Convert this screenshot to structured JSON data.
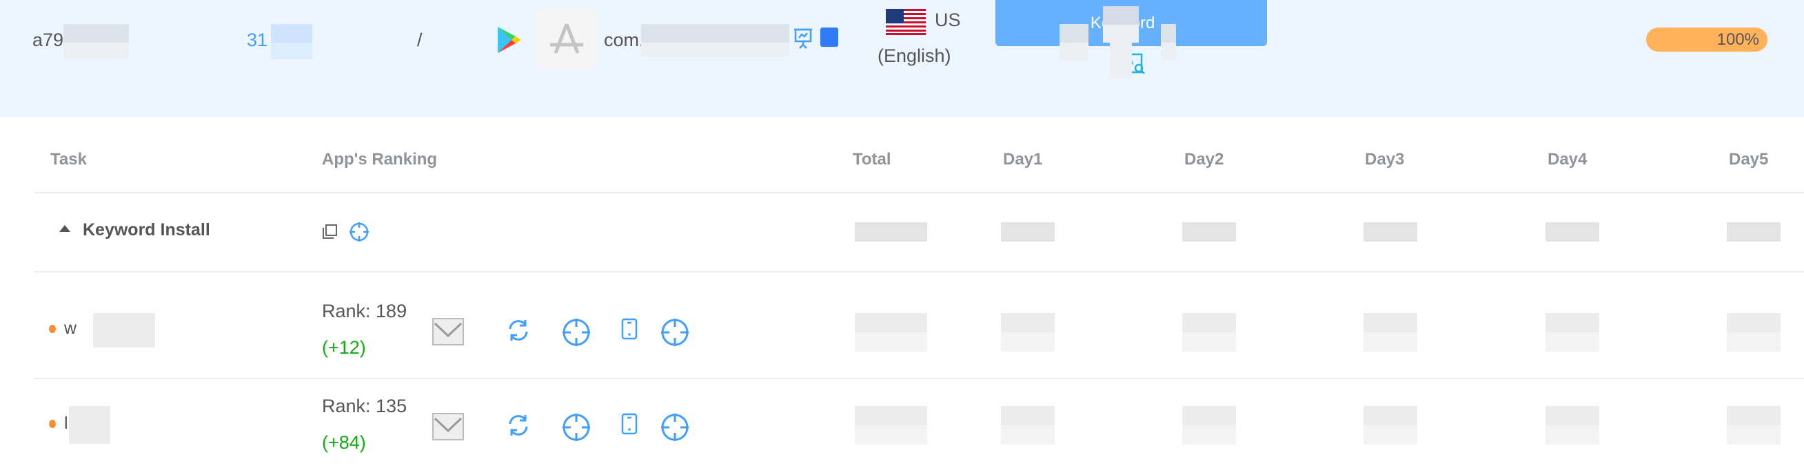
{
  "header": {
    "account_prefix": "a79",
    "id_prefix": "31",
    "separator": "/",
    "package_prefix": "com.",
    "country": "US",
    "language": "(English)",
    "type_button": "Keyword",
    "progress_label": "100%",
    "progress_value": 100,
    "colors": {
      "accent": "#66b1ff",
      "progress": "#ffb259",
      "link": "#409eff"
    }
  },
  "table": {
    "columns": [
      "Task",
      "App's Ranking",
      "Total",
      "Day1",
      "Day2",
      "Day3",
      "Day4",
      "Day5"
    ],
    "group": {
      "label": "Keyword Install"
    },
    "rows": [
      {
        "keyword_prefix": "w",
        "rank": "Rank: 189",
        "change": "(+12)"
      },
      {
        "keyword_prefix": "l",
        "rank": "Rank: 135",
        "change": "(+84)"
      }
    ]
  }
}
